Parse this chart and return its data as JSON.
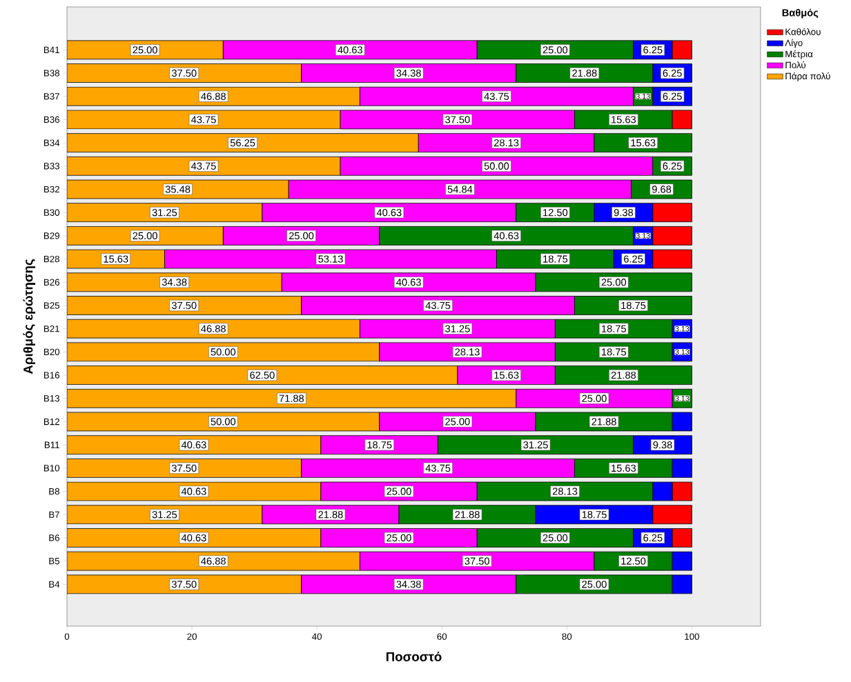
{
  "chart_data": {
    "type": "bar",
    "orientation": "horizontal",
    "stacked": true,
    "xlabel": "Ποσοστό",
    "ylabel": "Αριθμός ερώτησης",
    "legend_title": "Βαθμός",
    "legend": "right",
    "categories": [
      "B41",
      "B38",
      "B37",
      "B36",
      "B34",
      "B33",
      "B32",
      "B30",
      "B29",
      "B28",
      "B26",
      "B25",
      "B21",
      "B20",
      "B16",
      "B13",
      "B12",
      "B11",
      "B10",
      "B8",
      "B7",
      "B6",
      "B5",
      "B4"
    ],
    "xlim": [
      0,
      111
    ],
    "xticks": [
      0,
      20,
      40,
      60,
      80,
      100
    ],
    "series": [
      {
        "name": "Πάρα πολύ",
        "color": "#ffa500",
        "values": [
          25.0,
          37.5,
          46.88,
          43.75,
          56.25,
          43.75,
          35.48,
          31.25,
          25.0,
          15.63,
          34.38,
          37.5,
          46.88,
          50.0,
          62.5,
          71.88,
          50.0,
          40.63,
          37.5,
          40.63,
          31.25,
          40.63,
          46.88,
          37.5
        ],
        "value_labels": [
          "25.00",
          "37.50",
          "46.88",
          "43.75",
          "56.25",
          "43.75",
          "35.48",
          "31.25",
          "25.00",
          "15.63",
          "34.38",
          "37.50",
          "46.88",
          "50.00",
          "62.50",
          "71.88",
          "50.00",
          "40.63",
          "37.50",
          "40.63",
          "31.25",
          "40.63",
          "46.88",
          "37.50"
        ]
      },
      {
        "name": "Πολύ",
        "color": "#ff00ff",
        "values": [
          40.63,
          34.38,
          43.75,
          37.5,
          28.13,
          50.0,
          54.84,
          40.63,
          25.0,
          53.13,
          40.63,
          43.75,
          31.25,
          28.13,
          15.63,
          25.0,
          25.0,
          18.75,
          43.75,
          25.0,
          21.88,
          25.0,
          37.5,
          34.38
        ],
        "value_labels": [
          "40.63",
          "34.38",
          "43.75",
          "37.50",
          "28.13",
          "50.00",
          "54.84",
          "40.63",
          "25.00",
          "53.13",
          "40.63",
          "43.75",
          "31.25",
          "28.13",
          "15.63",
          "25.00",
          "25.00",
          "18.75",
          "43.75",
          "25.00",
          "21.88",
          "25.00",
          "37.50",
          "34.38"
        ]
      },
      {
        "name": "Μέτρια",
        "color": "#008000",
        "values": [
          25.0,
          21.88,
          3.13,
          15.63,
          15.63,
          6.25,
          9.68,
          12.5,
          40.63,
          18.75,
          25.0,
          18.75,
          18.75,
          18.75,
          21.88,
          3.13,
          21.88,
          31.25,
          15.63,
          28.13,
          21.88,
          25.0,
          12.5,
          25.0
        ],
        "value_labels": [
          "25.00",
          "21.88",
          "3.13",
          "15.63",
          "15.63",
          "6.25",
          "9.68",
          "12.50",
          "40.63",
          "18.75",
          "25.00",
          "18.75",
          "18.75",
          "18.75",
          "21.88",
          "3.13",
          "21.88",
          "31.25",
          "15.63",
          "28.13",
          "21.88",
          "25.00",
          "12.50",
          "25.00"
        ]
      },
      {
        "name": "Λίγο",
        "color": "#0000ff",
        "values": [
          6.25,
          6.25,
          6.25,
          null,
          null,
          null,
          null,
          9.38,
          3.13,
          6.25,
          null,
          null,
          3.13,
          3.13,
          null,
          null,
          3.13,
          9.38,
          3.13,
          3.13,
          18.75,
          6.25,
          3.13,
          3.13
        ],
        "value_labels": [
          "6.25",
          "6.25",
          "6.25",
          null,
          null,
          null,
          null,
          "9.38",
          "3.13",
          "6.25",
          null,
          null,
          "3.13",
          "3.13",
          null,
          null,
          null,
          "9.38",
          null,
          null,
          "18.75",
          "6.25",
          null,
          null
        ]
      },
      {
        "name": "Καθόλου",
        "color": "#ff0000",
        "values": [
          3.13,
          null,
          null,
          3.13,
          null,
          null,
          null,
          6.25,
          6.25,
          6.25,
          null,
          null,
          null,
          null,
          null,
          null,
          null,
          null,
          null,
          3.13,
          6.25,
          3.13,
          null,
          null
        ]
      }
    ]
  }
}
